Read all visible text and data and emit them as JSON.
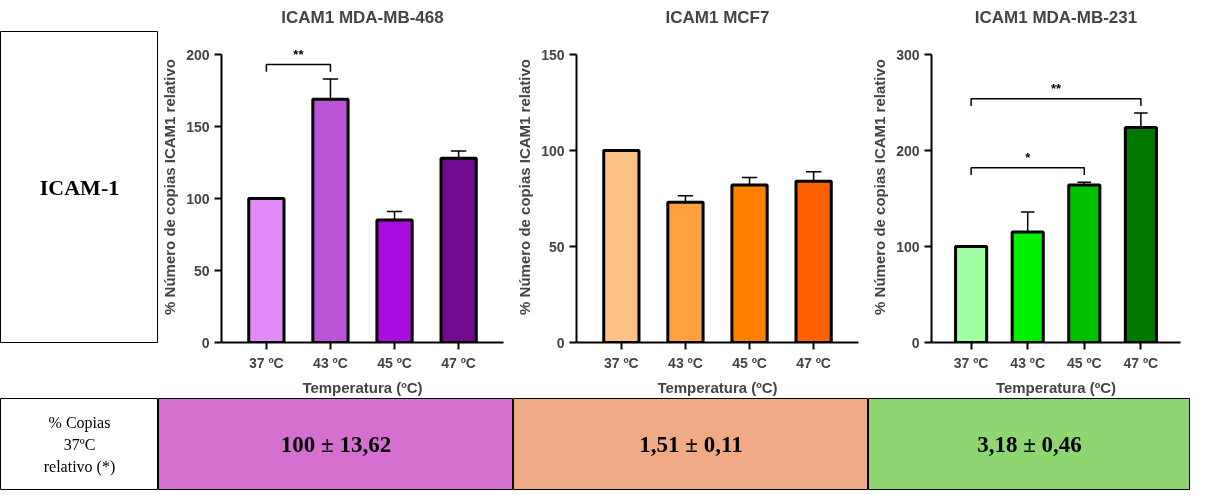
{
  "chart_data": [
    {
      "type": "other",
      "title": "ICAM-1"
    },
    {
      "type": "bar",
      "title": "ICAM1 MDA-MB-468",
      "xlabel": "Temperatura (ºC)",
      "ylabel": "% Número de copias ICAM1 relativo",
      "categories": [
        "37 ºC",
        "43 ºC",
        "45 ºC",
        "47 ºC"
      ],
      "values": [
        100,
        169,
        85,
        128
      ],
      "errors": [
        null,
        14,
        6,
        5
      ],
      "colors": [
        "#e08af5",
        "#b955d6",
        "#a90ce0",
        "#720a90"
      ],
      "ylim": [
        0,
        200
      ],
      "yticks": [
        0,
        50,
        100,
        150,
        200
      ],
      "annotations": [
        "**"
      ]
    },
    {
      "type": "bar",
      "title": "ICAM1 MCF7",
      "xlabel": "Temperatura (ºC)",
      "ylabel": "% Número de copias ICAM1 relativo",
      "categories": [
        "37 ºC",
        "43 ºC",
        "45 ºC",
        "47 ºC"
      ],
      "values": [
        100,
        73,
        82,
        84
      ],
      "errors": [
        null,
        3.5,
        4,
        5
      ],
      "colors": [
        "#ffc184",
        "#ffa040",
        "#ff8000",
        "#ff6000"
      ],
      "ylim": [
        0,
        150
      ],
      "yticks": [
        0,
        50,
        100,
        150
      ]
    },
    {
      "type": "bar",
      "title": "ICAM1 MDA-MB-231",
      "xlabel": "Temperatura (ºC)",
      "ylabel": "% Número de copias ICAM1 relativo",
      "categories": [
        "37 ºC",
        "43 ºC",
        "45 ºC",
        "47 ºC"
      ],
      "values": [
        100,
        115,
        164,
        224
      ],
      "errors": [
        null,
        21,
        3,
        15
      ],
      "colors": [
        "#a0ffa0",
        "#00f000",
        "#00c000",
        "#007800"
      ],
      "ylim": [
        0,
        300
      ],
      "yticks": [
        0,
        100,
        200,
        300
      ],
      "annotations": [
        "*",
        "**"
      ]
    },
    {
      "type": "other",
      "title": "% Copias\n37ºC\nrelativo (*)"
    },
    {
      "type": "other",
      "title": "100 ± 13,62",
      "color": "#d56fd0"
    },
    {
      "type": "other",
      "title": "1,51 ± 0,11",
      "color": "#f0aa85"
    },
    {
      "type": "other",
      "title": "3,18 ± 0,46",
      "color": "#8fd673"
    }
  ]
}
